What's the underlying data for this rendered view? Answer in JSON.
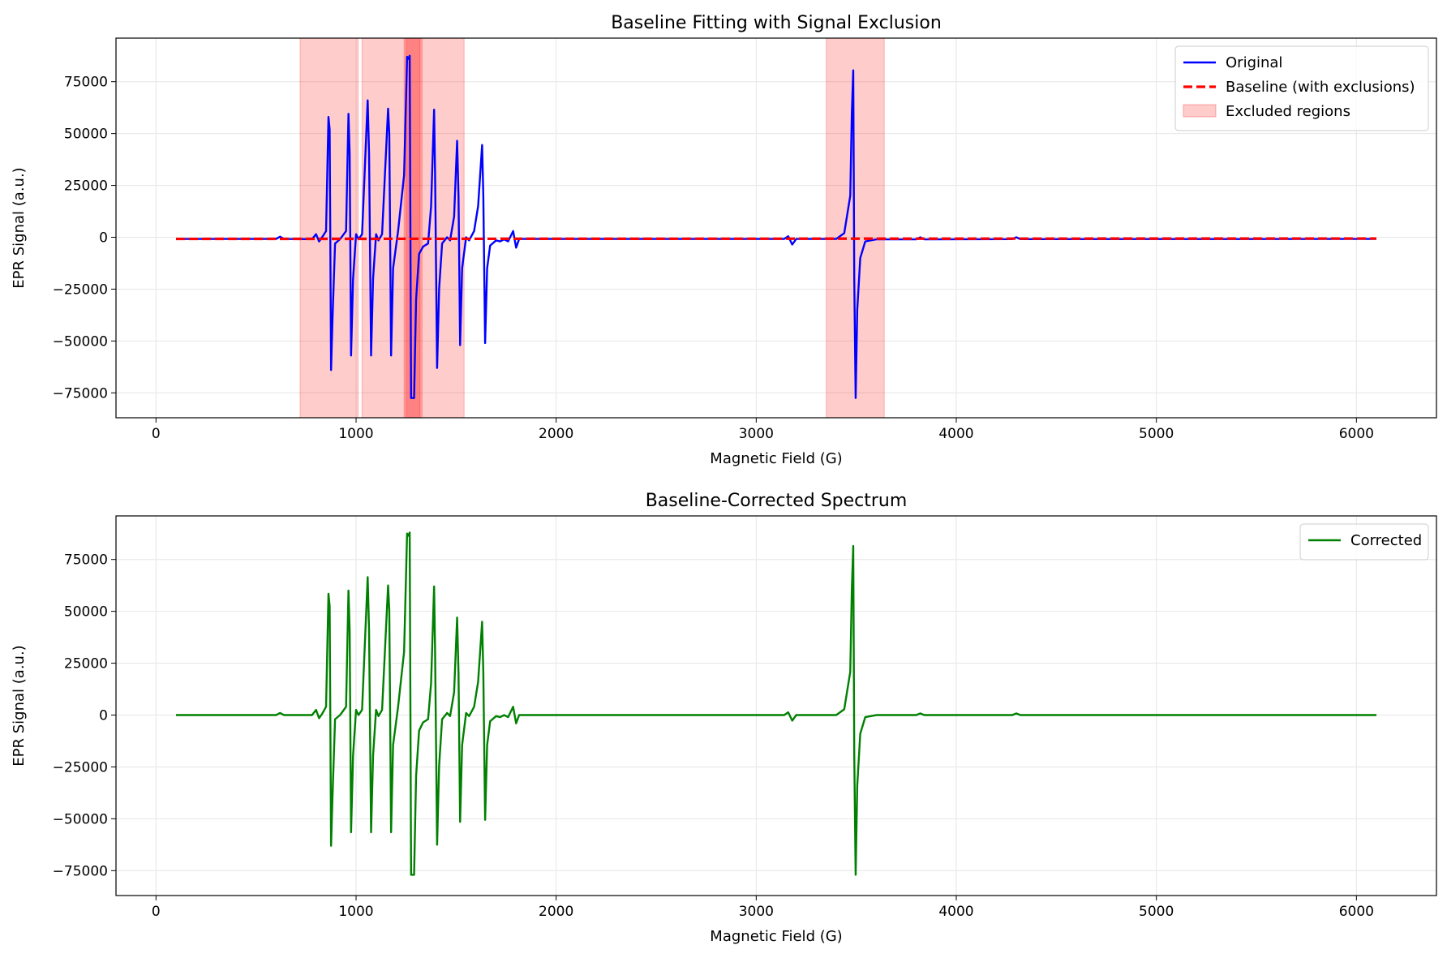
{
  "chart_data": [
    {
      "type": "line",
      "title": "Baseline Fitting with Signal Exclusion",
      "xlabel": "Magnetic Field (G)",
      "ylabel": "EPR Signal (a.u.)",
      "xlim": [
        -200,
        6400
      ],
      "ylim": [
        -87000,
        96000
      ],
      "xticks": [
        0,
        1000,
        2000,
        3000,
        4000,
        5000,
        6000
      ],
      "yticks": [
        -75000,
        -50000,
        -25000,
        0,
        25000,
        50000,
        75000
      ],
      "grid": true,
      "legend_position": "top-right",
      "legend": [
        "Original",
        "Baseline (with exclusions)",
        "Excluded regions"
      ],
      "excluded_regions": [
        [
          720,
          1010
        ],
        [
          1030,
          1320
        ],
        [
          1240,
          1330
        ],
        [
          1250,
          1540
        ],
        [
          3350,
          3640
        ]
      ],
      "series": [
        {
          "name": "Original",
          "color": "#0000ff",
          "style": "solid",
          "points": [
            [
              100,
              -800
            ],
            [
              600,
              -800
            ],
            [
              620,
              300
            ],
            [
              640,
              -800
            ],
            [
              780,
              -900
            ],
            [
              800,
              1500
            ],
            [
              815,
              -2000
            ],
            [
              830,
              0
            ],
            [
              850,
              3000
            ],
            [
              862,
              58000
            ],
            [
              868,
              52000
            ],
            [
              875,
              -64000
            ],
            [
              882,
              -40000
            ],
            [
              895,
              -3000
            ],
            [
              920,
              -900
            ],
            [
              950,
              3000
            ],
            [
              962,
              59500
            ],
            [
              968,
              40000
            ],
            [
              975,
              -57000
            ],
            [
              985,
              -20000
            ],
            [
              1000,
              1500
            ],
            [
              1012,
              -900
            ],
            [
              1030,
              1500
            ],
            [
              1058,
              66000
            ],
            [
              1065,
              40000
            ],
            [
              1075,
              -57000
            ],
            [
              1085,
              -20000
            ],
            [
              1100,
              1500
            ],
            [
              1112,
              -1500
            ],
            [
              1130,
              1500
            ],
            [
              1160,
              62000
            ],
            [
              1166,
              50000
            ],
            [
              1175,
              -57000
            ],
            [
              1185,
              -15000
            ],
            [
              1210,
              3000
            ],
            [
              1240,
              30000
            ],
            [
              1255,
              87000
            ],
            [
              1262,
              86000
            ],
            [
              1268,
              87500
            ],
            [
              1275,
              -77500
            ],
            [
              1290,
              -77500
            ],
            [
              1300,
              -30000
            ],
            [
              1315,
              -8000
            ],
            [
              1335,
              -4500
            ],
            [
              1360,
              -3000
            ],
            [
              1375,
              15000
            ],
            [
              1390,
              61500
            ],
            [
              1395,
              30000
            ],
            [
              1405,
              -63000
            ],
            [
              1415,
              -25000
            ],
            [
              1430,
              -3000
            ],
            [
              1455,
              0
            ],
            [
              1470,
              -1500
            ],
            [
              1490,
              10000
            ],
            [
              1505,
              46500
            ],
            [
              1512,
              20000
            ],
            [
              1520,
              -52000
            ],
            [
              1530,
              -15000
            ],
            [
              1550,
              0
            ],
            [
              1565,
              -1500
            ],
            [
              1590,
              3000
            ],
            [
              1610,
              15000
            ],
            [
              1630,
              44500
            ],
            [
              1636,
              20000
            ],
            [
              1645,
              -51000
            ],
            [
              1655,
              -15000
            ],
            [
              1670,
              -4000
            ],
            [
              1700,
              -1500
            ],
            [
              1720,
              -2000
            ],
            [
              1740,
              -1000
            ],
            [
              1760,
              -2000
            ],
            [
              1785,
              3000
            ],
            [
              1800,
              -5000
            ],
            [
              1815,
              -800
            ],
            [
              3140,
              -800
            ],
            [
              3160,
              500
            ],
            [
              3180,
              -3500
            ],
            [
              3200,
              -800
            ],
            [
              3400,
              -800
            ],
            [
              3440,
              2000
            ],
            [
              3470,
              20000
            ],
            [
              3478,
              60000
            ],
            [
              3485,
              80500
            ],
            [
              3490,
              -20000
            ],
            [
              3497,
              -77500
            ],
            [
              3505,
              -35000
            ],
            [
              3520,
              -10000
            ],
            [
              3545,
              -2000
            ],
            [
              3600,
              -1000
            ],
            [
              3800,
              -1000
            ],
            [
              3820,
              0
            ],
            [
              3840,
              -1000
            ],
            [
              4280,
              -900
            ],
            [
              4300,
              0
            ],
            [
              4320,
              -900
            ],
            [
              6100,
              -800
            ]
          ]
        },
        {
          "name": "Baseline (with exclusions)",
          "color": "#ff0000",
          "style": "dashed",
          "points": [
            [
              100,
              -800
            ],
            [
              6100,
              -600
            ]
          ]
        }
      ]
    },
    {
      "type": "line",
      "title": "Baseline-Corrected Spectrum",
      "xlabel": "Magnetic Field (G)",
      "ylabel": "EPR Signal (a.u.)",
      "xlim": [
        -200,
        6400
      ],
      "ylim": [
        -87000,
        96000
      ],
      "xticks": [
        0,
        1000,
        2000,
        3000,
        4000,
        5000,
        6000
      ],
      "yticks": [
        -75000,
        -50000,
        -25000,
        0,
        25000,
        50000,
        75000
      ],
      "grid": true,
      "legend_position": "top-right",
      "legend": [
        "Corrected"
      ],
      "series": [
        {
          "name": "Corrected",
          "color": "#008000",
          "style": "solid",
          "points": [
            [
              100,
              0
            ],
            [
              600,
              0
            ],
            [
              620,
              1000
            ],
            [
              640,
              0
            ],
            [
              780,
              0
            ],
            [
              800,
              2500
            ],
            [
              815,
              -1500
            ],
            [
              830,
              500
            ],
            [
              850,
              4000
            ],
            [
              862,
              58500
            ],
            [
              868,
              52500
            ],
            [
              875,
              -63000
            ],
            [
              882,
              -40000
            ],
            [
              895,
              -2000
            ],
            [
              920,
              0
            ],
            [
              950,
              4000
            ],
            [
              962,
              60000
            ],
            [
              968,
              40500
            ],
            [
              975,
              -56500
            ],
            [
              985,
              -19500
            ],
            [
              1000,
              2500
            ],
            [
              1012,
              0
            ],
            [
              1030,
              2500
            ],
            [
              1058,
              66500
            ],
            [
              1065,
              40500
            ],
            [
              1075,
              -56500
            ],
            [
              1085,
              -19500
            ],
            [
              1100,
              2500
            ],
            [
              1112,
              -500
            ],
            [
              1130,
              2500
            ],
            [
              1160,
              62500
            ],
            [
              1166,
              50500
            ],
            [
              1175,
              -56500
            ],
            [
              1185,
              -14500
            ],
            [
              1210,
              4000
            ],
            [
              1240,
              30500
            ],
            [
              1255,
              87500
            ],
            [
              1262,
              86500
            ],
            [
              1268,
              88000
            ],
            [
              1275,
              -77000
            ],
            [
              1290,
              -77000
            ],
            [
              1300,
              -29500
            ],
            [
              1315,
              -7500
            ],
            [
              1335,
              -3500
            ],
            [
              1360,
              -2000
            ],
            [
              1375,
              15500
            ],
            [
              1390,
              62000
            ],
            [
              1395,
              30500
            ],
            [
              1405,
              -62500
            ],
            [
              1415,
              -24500
            ],
            [
              1430,
              -2000
            ],
            [
              1455,
              1000
            ],
            [
              1470,
              -500
            ],
            [
              1490,
              11000
            ],
            [
              1505,
              47000
            ],
            [
              1512,
              20500
            ],
            [
              1520,
              -51500
            ],
            [
              1530,
              -14500
            ],
            [
              1550,
              1000
            ],
            [
              1565,
              -500
            ],
            [
              1590,
              4000
            ],
            [
              1610,
              16000
            ],
            [
              1630,
              45000
            ],
            [
              1636,
              20500
            ],
            [
              1645,
              -50500
            ],
            [
              1655,
              -14500
            ],
            [
              1670,
              -3000
            ],
            [
              1700,
              -500
            ],
            [
              1720,
              -1000
            ],
            [
              1740,
              0
            ],
            [
              1760,
              -1000
            ],
            [
              1785,
              4000
            ],
            [
              1800,
              -4000
            ],
            [
              1815,
              0
            ],
            [
              3140,
              0
            ],
            [
              3160,
              1300
            ],
            [
              3180,
              -2700
            ],
            [
              3200,
              0
            ],
            [
              3400,
              0
            ],
            [
              3440,
              2800
            ],
            [
              3470,
              20800
            ],
            [
              3478,
              61000
            ],
            [
              3485,
              81500
            ],
            [
              3490,
              -19000
            ],
            [
              3497,
              -77000
            ],
            [
              3505,
              -34000
            ],
            [
              3520,
              -9000
            ],
            [
              3545,
              -1000
            ],
            [
              3600,
              0
            ],
            [
              3800,
              0
            ],
            [
              3820,
              800
            ],
            [
              3840,
              0
            ],
            [
              4280,
              0
            ],
            [
              4300,
              800
            ],
            [
              4320,
              0
            ],
            [
              6100,
              0
            ]
          ]
        }
      ]
    }
  ]
}
